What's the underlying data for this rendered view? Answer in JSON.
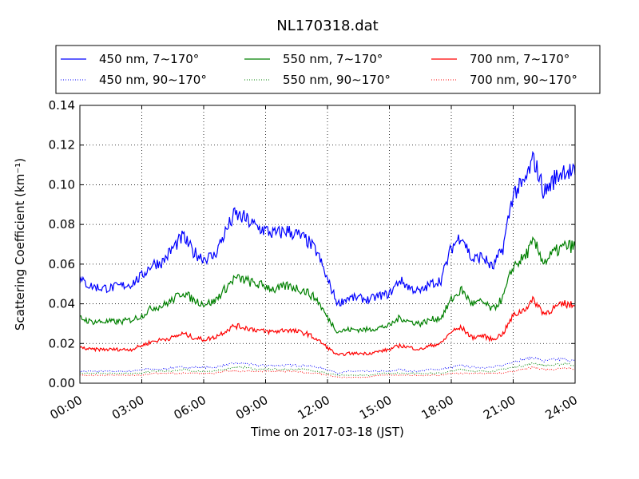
{
  "chart_data": {
    "type": "line",
    "title": "NL170318.dat",
    "xlabel": "Time on 2017-03-18 (JST)",
    "ylabel": "Scattering Coefficient (km⁻¹)",
    "xlim": [
      0,
      24
    ],
    "ylim": [
      0,
      0.14
    ],
    "grid": true,
    "legend_position": "top",
    "x_ticks": [
      {
        "value": 0,
        "label": "00:00"
      },
      {
        "value": 3,
        "label": "03:00"
      },
      {
        "value": 6,
        "label": "06:00"
      },
      {
        "value": 9,
        "label": "09:00"
      },
      {
        "value": 12,
        "label": "12:00"
      },
      {
        "value": 15,
        "label": "15:00"
      },
      {
        "value": 18,
        "label": "18:00"
      },
      {
        "value": 21,
        "label": "21:00"
      },
      {
        "value": 24,
        "label": "24:00"
      }
    ],
    "y_ticks": [
      {
        "value": 0,
        "label": "0.00"
      },
      {
        "value": 0.02,
        "label": "0.02"
      },
      {
        "value": 0.04,
        "label": "0.04"
      },
      {
        "value": 0.06,
        "label": "0.06"
      },
      {
        "value": 0.08,
        "label": "0.08"
      },
      {
        "value": 0.1,
        "label": "0.10"
      },
      {
        "value": 0.12,
        "label": "0.12"
      },
      {
        "value": 0.14,
        "label": "0.14"
      }
    ],
    "x": [
      0,
      0.5,
      1,
      1.5,
      2,
      2.5,
      3,
      3.5,
      4,
      4.5,
      5,
      5.5,
      6,
      6.5,
      7,
      7.5,
      8,
      8.5,
      9,
      9.5,
      10,
      10.5,
      11,
      11.5,
      12,
      12.5,
      13,
      13.5,
      14,
      14.5,
      15,
      15.5,
      16,
      16.5,
      17,
      17.5,
      18,
      18.5,
      19,
      19.5,
      20,
      20.5,
      21,
      21.5,
      22,
      22.5,
      23,
      23.5,
      24
    ],
    "series": [
      {
        "name": "450 nm, 7∼170°",
        "color": "#0000ff",
        "style": "solid",
        "values": [
          0.052,
          0.049,
          0.048,
          0.048,
          0.049,
          0.05,
          0.054,
          0.06,
          0.061,
          0.068,
          0.074,
          0.066,
          0.063,
          0.064,
          0.075,
          0.085,
          0.083,
          0.079,
          0.077,
          0.075,
          0.077,
          0.075,
          0.072,
          0.066,
          0.052,
          0.04,
          0.043,
          0.043,
          0.042,
          0.044,
          0.045,
          0.052,
          0.048,
          0.046,
          0.05,
          0.052,
          0.068,
          0.075,
          0.062,
          0.064,
          0.058,
          0.068,
          0.096,
          0.1,
          0.113,
          0.096,
          0.103,
          0.108,
          0.105
        ]
      },
      {
        "name": "550 nm, 7∼170°",
        "color": "#008000",
        "style": "solid",
        "values": [
          0.033,
          0.031,
          0.031,
          0.031,
          0.031,
          0.032,
          0.034,
          0.038,
          0.039,
          0.042,
          0.046,
          0.042,
          0.04,
          0.041,
          0.047,
          0.053,
          0.052,
          0.05,
          0.049,
          0.047,
          0.049,
          0.048,
          0.046,
          0.042,
          0.033,
          0.026,
          0.027,
          0.027,
          0.027,
          0.028,
          0.029,
          0.033,
          0.031,
          0.03,
          0.032,
          0.033,
          0.042,
          0.047,
          0.04,
          0.041,
          0.037,
          0.043,
          0.059,
          0.063,
          0.071,
          0.061,
          0.066,
          0.069,
          0.069
        ]
      },
      {
        "name": "700 nm, 7∼170°",
        "color": "#ff0000",
        "style": "solid",
        "values": [
          0.018,
          0.017,
          0.017,
          0.017,
          0.017,
          0.017,
          0.019,
          0.021,
          0.022,
          0.023,
          0.025,
          0.023,
          0.022,
          0.023,
          0.026,
          0.029,
          0.028,
          0.027,
          0.026,
          0.026,
          0.027,
          0.026,
          0.025,
          0.022,
          0.018,
          0.014,
          0.015,
          0.015,
          0.015,
          0.016,
          0.017,
          0.019,
          0.018,
          0.017,
          0.019,
          0.02,
          0.026,
          0.028,
          0.023,
          0.024,
          0.022,
          0.025,
          0.034,
          0.037,
          0.042,
          0.035,
          0.038,
          0.04,
          0.039
        ]
      },
      {
        "name": "450 nm, 90∼170°",
        "color": "#0000ff",
        "style": "dotted",
        "values": [
          0.006,
          0.006,
          0.006,
          0.006,
          0.006,
          0.006,
          0.007,
          0.007,
          0.007,
          0.008,
          0.008,
          0.008,
          0.008,
          0.008,
          0.009,
          0.01,
          0.01,
          0.009,
          0.009,
          0.009,
          0.009,
          0.009,
          0.009,
          0.008,
          0.007,
          0.005,
          0.006,
          0.006,
          0.006,
          0.006,
          0.006,
          0.007,
          0.006,
          0.006,
          0.007,
          0.007,
          0.008,
          0.009,
          0.008,
          0.008,
          0.008,
          0.009,
          0.011,
          0.012,
          0.013,
          0.011,
          0.012,
          0.012,
          0.011
        ]
      },
      {
        "name": "550 nm, 90∼170°",
        "color": "#008000",
        "style": "dotted",
        "values": [
          0.005,
          0.005,
          0.005,
          0.005,
          0.005,
          0.005,
          0.005,
          0.006,
          0.006,
          0.006,
          0.007,
          0.006,
          0.006,
          0.006,
          0.007,
          0.008,
          0.008,
          0.007,
          0.007,
          0.007,
          0.007,
          0.007,
          0.007,
          0.006,
          0.005,
          0.004,
          0.004,
          0.004,
          0.004,
          0.005,
          0.005,
          0.005,
          0.005,
          0.005,
          0.005,
          0.005,
          0.006,
          0.007,
          0.006,
          0.006,
          0.006,
          0.007,
          0.008,
          0.009,
          0.01,
          0.009,
          0.009,
          0.01,
          0.009
        ]
      },
      {
        "name": "700 nm, 90∼170°",
        "color": "#ff0000",
        "style": "dotted",
        "values": [
          0.004,
          0.004,
          0.004,
          0.004,
          0.004,
          0.004,
          0.004,
          0.005,
          0.005,
          0.005,
          0.005,
          0.005,
          0.005,
          0.005,
          0.006,
          0.006,
          0.006,
          0.006,
          0.006,
          0.006,
          0.006,
          0.006,
          0.005,
          0.005,
          0.004,
          0.003,
          0.003,
          0.003,
          0.003,
          0.004,
          0.004,
          0.004,
          0.004,
          0.004,
          0.004,
          0.004,
          0.005,
          0.005,
          0.005,
          0.005,
          0.005,
          0.005,
          0.006,
          0.007,
          0.008,
          0.007,
          0.007,
          0.008,
          0.007
        ]
      }
    ]
  }
}
